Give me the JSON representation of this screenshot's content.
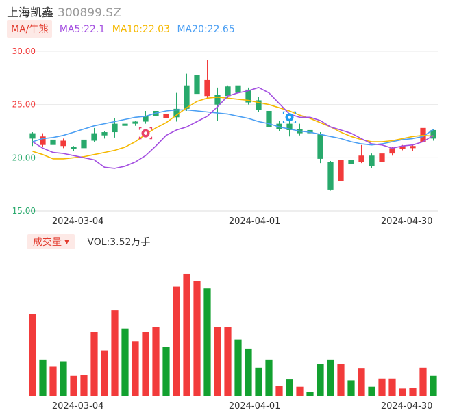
{
  "header": {
    "name": "上海凯鑫",
    "code": "300899.SZ"
  },
  "ma_legend": {
    "toggle_label": "MA/牛熊",
    "ma5_label": "MA5:22.1",
    "ma10_label": "MA10:22.03",
    "ma20_label": "MA20:22.65"
  },
  "volume_legend": {
    "toggle_label": "成交量",
    "caret": "▼",
    "value_label": "VOL:3.52万手"
  },
  "colors": {
    "up": "#f23b3b",
    "down": "#28a96c",
    "vol_down": "#13a130",
    "ma5": "#a34ee0",
    "ma10": "#f5b800",
    "ma20": "#4b9ff3",
    "badge_sell": "#e8436a",
    "badge_buy": "#1e9cf0"
  },
  "badges": {
    "sell_icon": "sell-signal-icon",
    "buy_icon": "buy-signal-icon"
  },
  "chart_data": [
    {
      "type": "candlestick",
      "y_ticks": [
        "30.00",
        "25.00",
        "20.00",
        "15.00"
      ],
      "ylim": [
        15,
        30
      ],
      "x_tick_labels": [
        "2024-03-04",
        "2024-04-01",
        "2024-04-30"
      ],
      "grid": true,
      "candles": [
        {
          "o": 22.3,
          "c": 21.8,
          "h": 22.4,
          "l": 21.1
        },
        {
          "o": 21.2,
          "c": 22.0,
          "h": 22.3,
          "l": 21.0
        },
        {
          "o": 21.7,
          "c": 21.2,
          "h": 21.8,
          "l": 21.0
        },
        {
          "o": 21.1,
          "c": 21.6,
          "h": 21.8,
          "l": 20.9
        },
        {
          "o": 21.0,
          "c": 20.8,
          "h": 21.1,
          "l": 20.6
        },
        {
          "o": 21.7,
          "c": 20.9,
          "h": 21.8,
          "l": 20.7
        },
        {
          "o": 22.3,
          "c": 21.6,
          "h": 22.8,
          "l": 21.5
        },
        {
          "o": 22.4,
          "c": 22.1,
          "h": 22.5,
          "l": 21.8
        },
        {
          "o": 23.2,
          "c": 22.4,
          "h": 23.7,
          "l": 21.9
        },
        {
          "o": 23.2,
          "c": 23.0,
          "h": 23.4,
          "l": 22.6
        },
        {
          "o": 23.4,
          "c": 23.2,
          "h": 23.5,
          "l": 23.0
        },
        {
          "o": 23.9,
          "c": 23.4,
          "h": 24.4,
          "l": 23.2
        },
        {
          "o": 24.4,
          "c": 23.9,
          "h": 24.9,
          "l": 23.7
        },
        {
          "o": 23.7,
          "c": 24.1,
          "h": 24.3,
          "l": 23.5
        },
        {
          "o": 24.6,
          "c": 23.8,
          "h": 26.1,
          "l": 23.4
        },
        {
          "o": 26.8,
          "c": 24.6,
          "h": 27.9,
          "l": 24.4
        },
        {
          "o": 27.8,
          "c": 26.0,
          "h": 28.4,
          "l": 25.6
        },
        {
          "o": 25.8,
          "c": 27.3,
          "h": 29.2,
          "l": 25.6
        },
        {
          "o": 25.9,
          "c": 25.0,
          "h": 26.6,
          "l": 23.5
        },
        {
          "o": 26.7,
          "c": 25.8,
          "h": 26.8,
          "l": 25.6
        },
        {
          "o": 26.8,
          "c": 26.1,
          "h": 27.3,
          "l": 25.9
        },
        {
          "o": 26.4,
          "c": 25.2,
          "h": 26.6,
          "l": 25.0
        },
        {
          "o": 25.4,
          "c": 24.5,
          "h": 25.7,
          "l": 24.3
        },
        {
          "o": 24.4,
          "c": 22.9,
          "h": 24.6,
          "l": 22.7
        },
        {
          "o": 23.2,
          "c": 22.7,
          "h": 23.5,
          "l": 22.5
        },
        {
          "o": 23.2,
          "c": 22.6,
          "h": 23.6,
          "l": 22.0
        },
        {
          "o": 22.7,
          "c": 22.3,
          "h": 23.2,
          "l": 22.1
        },
        {
          "o": 22.6,
          "c": 22.3,
          "h": 23.0,
          "l": 22.1
        },
        {
          "o": 22.2,
          "c": 19.9,
          "h": 22.4,
          "l": 19.5
        },
        {
          "o": 19.6,
          "c": 17.0,
          "h": 19.7,
          "l": 16.9
        },
        {
          "o": 17.8,
          "c": 19.8,
          "h": 19.9,
          "l": 17.7
        },
        {
          "o": 19.8,
          "c": 19.4,
          "h": 20.2,
          "l": 18.9
        },
        {
          "o": 19.6,
          "c": 20.2,
          "h": 21.2,
          "l": 19.5
        },
        {
          "o": 20.2,
          "c": 19.2,
          "h": 20.4,
          "l": 19.0
        },
        {
          "o": 19.6,
          "c": 20.4,
          "h": 20.7,
          "l": 19.5
        },
        {
          "o": 20.4,
          "c": 20.9,
          "h": 21.0,
          "l": 20.2
        },
        {
          "o": 20.8,
          "c": 21.1,
          "h": 21.2,
          "l": 20.7
        },
        {
          "o": 20.9,
          "c": 21.1,
          "h": 21.3,
          "l": 20.6
        },
        {
          "o": 21.5,
          "c": 22.8,
          "h": 23.0,
          "l": 21.3
        },
        {
          "o": 22.6,
          "c": 21.8,
          "h": 22.7,
          "l": 21.6
        }
      ],
      "ma5": [
        21.5,
        20.9,
        20.5,
        20.4,
        20.2,
        20.0,
        19.8,
        19.1,
        19.0,
        19.2,
        19.6,
        20.2,
        21.1,
        22.1,
        22.6,
        22.9,
        23.4,
        23.9,
        24.8,
        25.8,
        26.1,
        26.3,
        26.6,
        26.1,
        25.1,
        24.1,
        23.8,
        23.8,
        23.5,
        22.9,
        22.6,
        22.3,
        21.8,
        21.3,
        21.2,
        20.9,
        21.1,
        21.2,
        21.5,
        22.1
      ],
      "ma10": [
        20.6,
        20.3,
        19.9,
        19.9,
        20.0,
        20.1,
        20.3,
        20.5,
        20.7,
        21.0,
        21.5,
        22.2,
        22.8,
        23.3,
        24.0,
        24.7,
        25.3,
        25.6,
        25.7,
        25.6,
        25.5,
        25.4,
        25.2,
        25.0,
        24.7,
        24.4,
        24.0,
        23.7,
        23.3,
        22.9,
        22.4,
        22.0,
        21.7,
        21.5,
        21.5,
        21.6,
        21.8,
        22.0,
        22.1,
        22.03
      ],
      "ma20": [
        21.5,
        21.8,
        21.9,
        22.1,
        22.4,
        22.7,
        23.0,
        23.2,
        23.4,
        23.6,
        23.8,
        23.9,
        24.2,
        24.4,
        24.5,
        24.5,
        24.4,
        24.3,
        24.2,
        24.1,
        23.9,
        23.7,
        23.4,
        23.2,
        22.9,
        22.7,
        22.5,
        22.4,
        22.2,
        22.0,
        21.8,
        21.5,
        21.3,
        21.2,
        21.3,
        21.5,
        21.7,
        21.8,
        22.0,
        22.65
      ],
      "badges": [
        {
          "kind": "sell",
          "index": 11,
          "y": 22.3
        },
        {
          "kind": "buy",
          "index": 25,
          "y": 23.8
        }
      ]
    },
    {
      "type": "bar",
      "title": "成交量",
      "unit": "万手",
      "x_tick_labels": [
        "2024-03-04",
        "2024-04-01",
        "2024-04-30"
      ],
      "volumes": [
        4.5,
        2.0,
        1.6,
        1.9,
        1.1,
        1.15,
        3.5,
        2.5,
        4.7,
        3.7,
        3.0,
        3.5,
        3.8,
        2.7,
        6.0,
        6.7,
        6.3,
        5.9,
        3.8,
        3.8,
        3.1,
        2.6,
        1.55,
        2.0,
        0.55,
        0.9,
        0.5,
        0.2,
        1.75,
        2.0,
        1.75,
        0.85,
        1.5,
        0.5,
        0.95,
        0.95,
        0.4,
        0.45,
        1.55,
        1.1
      ],
      "vol_up": [
        true,
        false,
        true,
        false,
        true,
        true,
        true,
        true,
        true,
        false,
        true,
        true,
        true,
        false,
        true,
        true,
        true,
        false,
        true,
        true,
        false,
        false,
        false,
        false,
        true,
        false,
        true,
        false,
        false,
        false,
        true,
        false,
        true,
        false,
        true,
        true,
        true,
        true,
        true,
        false
      ],
      "ylim": [
        0,
        7
      ]
    }
  ]
}
